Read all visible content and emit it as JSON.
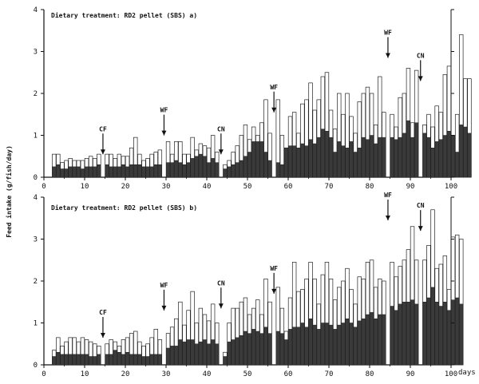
{
  "figure": {
    "ylabel": "Feed intake (g/fish/day)",
    "days_label": "days"
  },
  "chart_data": [
    {
      "type": "bar",
      "title": "Dietary treatment: RD2 pellet (SBS) a)",
      "xlim": [
        0,
        100
      ],
      "ylim": [
        0,
        4
      ],
      "x_ticks": [
        0,
        10,
        20,
        30,
        40,
        50,
        60,
        70,
        80,
        90,
        100
      ],
      "y_ticks": [
        0,
        1,
        2,
        3,
        4
      ],
      "grid": false,
      "series": [
        {
          "name": "total",
          "values": [
            0.55,
            0.55,
            0.35,
            0.4,
            0.45,
            0.4,
            0.4,
            0.4,
            0.45,
            0.5,
            0.45,
            0.55,
            0.35,
            0.55,
            0.55,
            0.45,
            0.55,
            0.5,
            0.5,
            0.7,
            0.95,
            0.55,
            0.4,
            0.45,
            0.55,
            0.6,
            0.65,
            1.05,
            0.85,
            0.55,
            0.85,
            0.85,
            0.55,
            0.55,
            0.95,
            0.65,
            0.8,
            0.75,
            0.7,
            1.0,
            0.6,
            0.55,
            0.3,
            0.4,
            0.6,
            0.75,
            1.0,
            1.25,
            0.9,
            1.2,
            1.0,
            1.3,
            1.85,
            1.05,
            1.2,
            1.85,
            1.0,
            0.7,
            1.45,
            1.55,
            1.05,
            1.75,
            1.85,
            2.25,
            1.6,
            1.85,
            2.4,
            2.5,
            1.6,
            1.15,
            2.0,
            1.5,
            2.0,
            1.45,
            1.05,
            1.8,
            2.0,
            2.15,
            2.0,
            1.25,
            2.4,
            1.55,
            1.7,
            1.5,
            1.2,
            1.9,
            2.0,
            2.6,
            1.3,
            2.55,
            2.0,
            1.25,
            1.5,
            1.2,
            1.7,
            1.55,
            2.45,
            2.65,
            1.0,
            1.5,
            3.4,
            2.35,
            2.35
          ]
        },
        {
          "name": "dark",
          "values": [
            0.25,
            0.3,
            0.2,
            0.2,
            0.25,
            0.25,
            0.25,
            0.2,
            0.25,
            0.25,
            0.25,
            0.3,
            0.25,
            0.3,
            0.25,
            0.25,
            0.25,
            0.3,
            0.25,
            0.3,
            0.3,
            0.3,
            0.25,
            0.25,
            0.25,
            0.3,
            0.3,
            0.6,
            0.35,
            0.35,
            0.4,
            0.35,
            0.3,
            0.35,
            0.45,
            0.5,
            0.55,
            0.5,
            0.35,
            0.45,
            0.35,
            0.3,
            0.2,
            0.25,
            0.3,
            0.35,
            0.4,
            0.5,
            0.6,
            0.85,
            0.85,
            0.85,
            0.6,
            0.4,
            0.35,
            0.35,
            0.3,
            0.7,
            0.75,
            0.75,
            0.7,
            0.8,
            0.75,
            0.9,
            0.8,
            0.95,
            1.15,
            1.1,
            0.95,
            0.6,
            0.85,
            0.75,
            0.7,
            0.85,
            0.6,
            0.7,
            0.95,
            0.9,
            1.0,
            0.8,
            0.95,
            0.95,
            0.85,
            0.95,
            0.9,
            0.95,
            1.05,
            1.35,
            0.95,
            1.3,
            1.05,
            1.05,
            0.95,
            0.7,
            0.85,
            0.9,
            1.0,
            1.1,
            1.0,
            0.6,
            1.25,
            1.2,
            1.05
          ]
        }
      ],
      "gaps": [
        14,
        29,
        43,
        56,
        84,
        92
      ],
      "annotations": [
        {
          "label": "CF",
          "day": 14,
          "y": 1.1
        },
        {
          "label": "WF",
          "day": 29,
          "y": 1.55
        },
        {
          "label": "CN",
          "day": 43,
          "y": 1.1
        },
        {
          "label": "WF",
          "day": 56,
          "y": 2.1
        },
        {
          "label": "WF",
          "day": 84,
          "y": 3.4
        },
        {
          "label": "CN",
          "day": 92,
          "y": 2.85
        }
      ]
    },
    {
      "type": "bar",
      "title": "Dietary treatment: RD2 pellet (SBS) b)",
      "xlim": [
        0,
        100
      ],
      "ylim": [
        0,
        4
      ],
      "x_ticks": [
        0,
        10,
        20,
        30,
        40,
        50,
        60,
        70,
        80,
        90,
        100
      ],
      "y_ticks": [
        0,
        1,
        2,
        3,
        4
      ],
      "grid": false,
      "series": [
        {
          "name": "total",
          "values": [
            0.35,
            0.65,
            0.45,
            0.55,
            0.65,
            0.65,
            0.55,
            0.65,
            0.6,
            0.55,
            0.5,
            0.45,
            0.4,
            0.5,
            0.6,
            0.55,
            0.45,
            0.6,
            0.65,
            0.75,
            0.8,
            0.55,
            0.45,
            0.5,
            0.65,
            0.85,
            0.6,
            0.9,
            0.75,
            0.9,
            1.1,
            1.5,
            0.95,
            1.3,
            1.75,
            1.0,
            1.35,
            1.2,
            1.05,
            1.45,
            1.0,
            0.85,
            0.3,
            1.0,
            1.35,
            1.35,
            1.5,
            1.6,
            1.2,
            1.35,
            1.55,
            1.2,
            2.05,
            1.5,
            1.45,
            1.85,
            1.35,
            0.8,
            1.6,
            2.45,
            1.75,
            1.8,
            2.05,
            2.45,
            2.05,
            1.45,
            2.15,
            2.45,
            2.05,
            1.55,
            1.85,
            2.0,
            2.3,
            1.8,
            1.45,
            2.1,
            2.05,
            2.45,
            2.5,
            1.85,
            2.05,
            2.0,
            2.25,
            2.45,
            2.1,
            2.35,
            2.5,
            2.75,
            3.3,
            2.5,
            2.35,
            2.5,
            2.85,
            3.7,
            2.3,
            2.4,
            2.6,
            1.8,
            3.05,
            3.1,
            3.0
          ]
        },
        {
          "name": "dark",
          "values": [
            0.2,
            0.3,
            0.25,
            0.25,
            0.25,
            0.25,
            0.25,
            0.25,
            0.25,
            0.2,
            0.2,
            0.25,
            0.25,
            0.25,
            0.25,
            0.35,
            0.3,
            0.25,
            0.3,
            0.25,
            0.25,
            0.25,
            0.2,
            0.2,
            0.25,
            0.25,
            0.25,
            0.3,
            0.4,
            0.45,
            0.45,
            0.6,
            0.55,
            0.6,
            0.6,
            0.5,
            0.55,
            0.6,
            0.5,
            0.6,
            0.5,
            0.5,
            0.2,
            0.55,
            0.6,
            0.65,
            0.7,
            0.8,
            0.75,
            0.85,
            0.8,
            0.75,
            0.9,
            0.75,
            0.7,
            0.8,
            0.75,
            0.6,
            0.85,
            0.9,
            0.9,
            1.0,
            0.9,
            1.1,
            0.95,
            0.85,
            1.0,
            1.0,
            0.95,
            0.85,
            0.95,
            1.0,
            1.1,
            1.0,
            0.9,
            1.05,
            1.1,
            1.2,
            1.25,
            1.1,
            1.2,
            1.2,
            1.35,
            1.4,
            1.3,
            1.45,
            1.5,
            1.5,
            1.55,
            1.45,
            1.5,
            1.5,
            1.6,
            1.85,
            1.5,
            1.4,
            1.5,
            1.3,
            1.55,
            1.6,
            1.45
          ]
        }
      ],
      "gaps": [
        14,
        29,
        43,
        56,
        84,
        92
      ],
      "annotations": [
        {
          "label": "CF",
          "day": 14,
          "y": 1.2
        },
        {
          "label": "WF",
          "day": 29,
          "y": 1.85
        },
        {
          "label": "CN",
          "day": 43,
          "y": 1.9
        },
        {
          "label": "WF",
          "day": 56,
          "y": 2.25
        },
        {
          "label": "WF",
          "day": 84,
          "y": 4.0
        },
        {
          "label": "CN",
          "day": 92,
          "y": 3.75
        }
      ]
    }
  ]
}
